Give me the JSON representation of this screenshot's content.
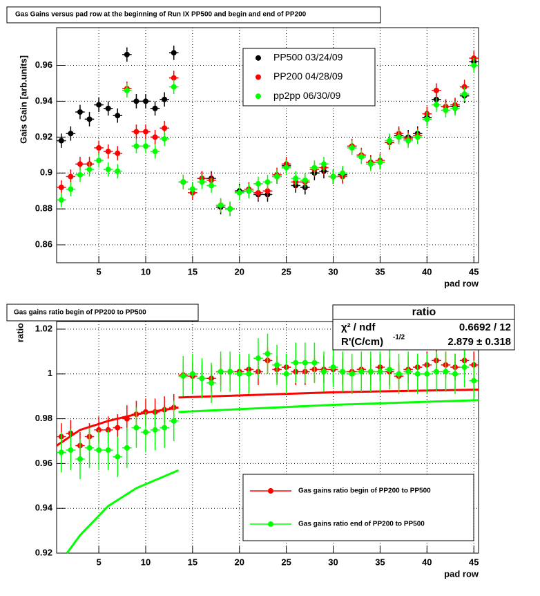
{
  "chart_data": [
    {
      "type": "scatter",
      "title": "Gas Gains versus pad row at the beginning of Run IX PP500 and begin and end of PP200",
      "xlabel": "pad row",
      "ylabel": "Gais Gain [arb.units]",
      "x": [
        1,
        2,
        3,
        4,
        5,
        6,
        7,
        8,
        9,
        10,
        11,
        12,
        13,
        14,
        15,
        16,
        17,
        18,
        19,
        20,
        21,
        22,
        23,
        24,
        25,
        26,
        27,
        28,
        29,
        30,
        31,
        32,
        33,
        34,
        35,
        36,
        37,
        38,
        39,
        40,
        41,
        42,
        43,
        44,
        45
      ],
      "xlim": [
        0.5,
        45.5
      ],
      "ylim": [
        0.85,
        0.981
      ],
      "xticks": [
        5,
        10,
        15,
        20,
        25,
        30,
        35,
        40,
        45
      ],
      "yticks": [
        0.86,
        0.88,
        0.9,
        0.92,
        0.94,
        0.96
      ],
      "grid": true,
      "legend": "top-right",
      "series": [
        {
          "name": "PP500 03/24/09",
          "color": "#000000",
          "error": 0.004,
          "values": [
            0.918,
            0.922,
            0.934,
            0.93,
            0.938,
            0.936,
            0.932,
            0.966,
            0.94,
            0.94,
            0.936,
            0.941,
            0.967,
            0.895,
            0.891,
            0.897,
            0.897,
            0.881,
            0.88,
            0.89,
            0.89,
            0.888,
            0.888,
            0.898,
            0.904,
            0.893,
            0.892,
            0.9,
            0.901,
            0.898,
            0.899,
            0.915,
            0.91,
            0.906,
            0.906,
            0.917,
            0.921,
            0.92,
            0.922,
            0.931,
            0.941,
            0.937,
            0.937,
            0.943,
            0.962
          ]
        },
        {
          "name": "PP200 04/28/09",
          "color": "#ff0000",
          "error": 0.004,
          "values": [
            0.892,
            0.898,
            0.905,
            0.905,
            0.914,
            0.912,
            0.911,
            0.947,
            0.923,
            0.923,
            0.92,
            0.925,
            0.953,
            0.895,
            0.889,
            0.897,
            0.896,
            0.882,
            0.88,
            0.889,
            0.891,
            0.889,
            0.89,
            0.899,
            0.905,
            0.895,
            0.895,
            0.902,
            0.903,
            0.898,
            0.898,
            0.915,
            0.91,
            0.906,
            0.907,
            0.917,
            0.922,
            0.919,
            0.921,
            0.933,
            0.946,
            0.937,
            0.938,
            0.948,
            0.964
          ]
        },
        {
          "name": "pp2pp 06/30/09",
          "color": "#00ff00",
          "error": 0.004,
          "values": [
            0.885,
            0.891,
            0.899,
            0.902,
            0.907,
            0.902,
            0.901,
            0.946,
            0.915,
            0.915,
            0.912,
            0.919,
            0.948,
            0.895,
            0.891,
            0.895,
            0.893,
            0.882,
            0.88,
            0.889,
            0.89,
            0.894,
            0.895,
            0.898,
            0.903,
            0.897,
            0.896,
            0.903,
            0.905,
            0.898,
            0.9,
            0.914,
            0.909,
            0.905,
            0.906,
            0.918,
            0.92,
            0.918,
            0.92,
            0.93,
            0.938,
            0.935,
            0.936,
            0.944,
            0.96
          ]
        }
      ]
    },
    {
      "type": "scatter",
      "title": "Gas gains ratio begin of PP200 to PP500",
      "xlabel": "pad row",
      "ylabel": "ratio",
      "x": [
        1,
        2,
        3,
        4,
        5,
        6,
        7,
        8,
        9,
        10,
        11,
        12,
        13,
        14,
        15,
        16,
        17,
        18,
        19,
        20,
        21,
        22,
        23,
        24,
        25,
        26,
        27,
        28,
        29,
        30,
        31,
        32,
        33,
        34,
        35,
        36,
        37,
        38,
        39,
        40,
        41,
        42,
        43,
        44,
        45
      ],
      "xlim": [
        0.5,
        45.5
      ],
      "ylim": [
        0.92,
        1.0234
      ],
      "xticks": [
        5,
        10,
        15,
        20,
        25,
        30,
        35,
        40,
        45
      ],
      "yticks": [
        0.92,
        0.94,
        0.96,
        0.98,
        1,
        1.02
      ],
      "grid": true,
      "legend": "bottom-right",
      "series": [
        {
          "name": "Gas gains ratio begin of PP200 to PP500",
          "color": "#ff0000",
          "error": 0.006,
          "values": [
            0.972,
            0.9735,
            0.968,
            0.972,
            0.975,
            0.975,
            0.976,
            0.98,
            0.982,
            0.983,
            0.983,
            0.984,
            0.985,
            0.9995,
            0.999,
            0.998,
            0.998,
            1.001,
            1.001,
            1.001,
            1.002,
            1.001,
            1.006,
            1.002,
            1.003,
            1.001,
            1.001,
            1.002,
            1.002,
            1.002,
            1.001,
            1.001,
            1.002,
            1.001,
            1.003,
            1.001,
            0.999,
            1.002,
            1.003,
            1.004,
            1.006,
            1.004,
            1.003,
            1.006,
            1.004
          ]
        },
        {
          "name": "Gas gains ratio end of PP200 to PP500",
          "color": "#00ff00",
          "error": 0.009,
          "values": [
            0.965,
            0.966,
            0.962,
            0.967,
            0.966,
            0.966,
            0.963,
            0.967,
            0.976,
            0.974,
            0.975,
            0.976,
            0.979,
            0.999,
            1.0,
            0.998,
            0.996,
            1.001,
            1.001,
            1.0,
            1.0,
            1.007,
            1.009,
            1.004,
            1.0,
            1.005,
            1.005,
            1.005,
            1.001,
            1.003,
            1.001,
            1.0,
            1.001,
            1.001,
            1.001,
            1.002,
            1.0,
            1.001,
            1.0,
            1.0,
            1.001,
            1.001,
            1.0,
            1.003,
            0.997
          ]
        }
      ],
      "fits": [
        {
          "color": "#ff0000",
          "x": [
            0.5,
            3,
            6,
            9,
            13.5
          ],
          "values": [
            0.968,
            0.975,
            0.979,
            0.982,
            0.985
          ]
        },
        {
          "color": "#ff0000",
          "x": [
            13.5,
            30,
            45.5
          ],
          "values": [
            0.9895,
            0.9918,
            0.993
          ]
        },
        {
          "color": "#00ff00",
          "x": [
            1.6,
            3,
            6,
            9,
            13.5
          ],
          "values": [
            0.92,
            0.928,
            0.941,
            0.949,
            0.957
          ]
        },
        {
          "color": "#00ff00",
          "x": [
            13.5,
            30,
            45.5
          ],
          "values": [
            0.983,
            0.9862,
            0.9883
          ]
        }
      ],
      "stats": {
        "title": "ratio",
        "chi2_label": "χ² / ndf",
        "chi2_value": "0.6692 / 12",
        "param_label": "R'(C/cm)",
        "param_exponent": "-1/2",
        "param_value": "2.879 ± 0.318"
      }
    }
  ]
}
